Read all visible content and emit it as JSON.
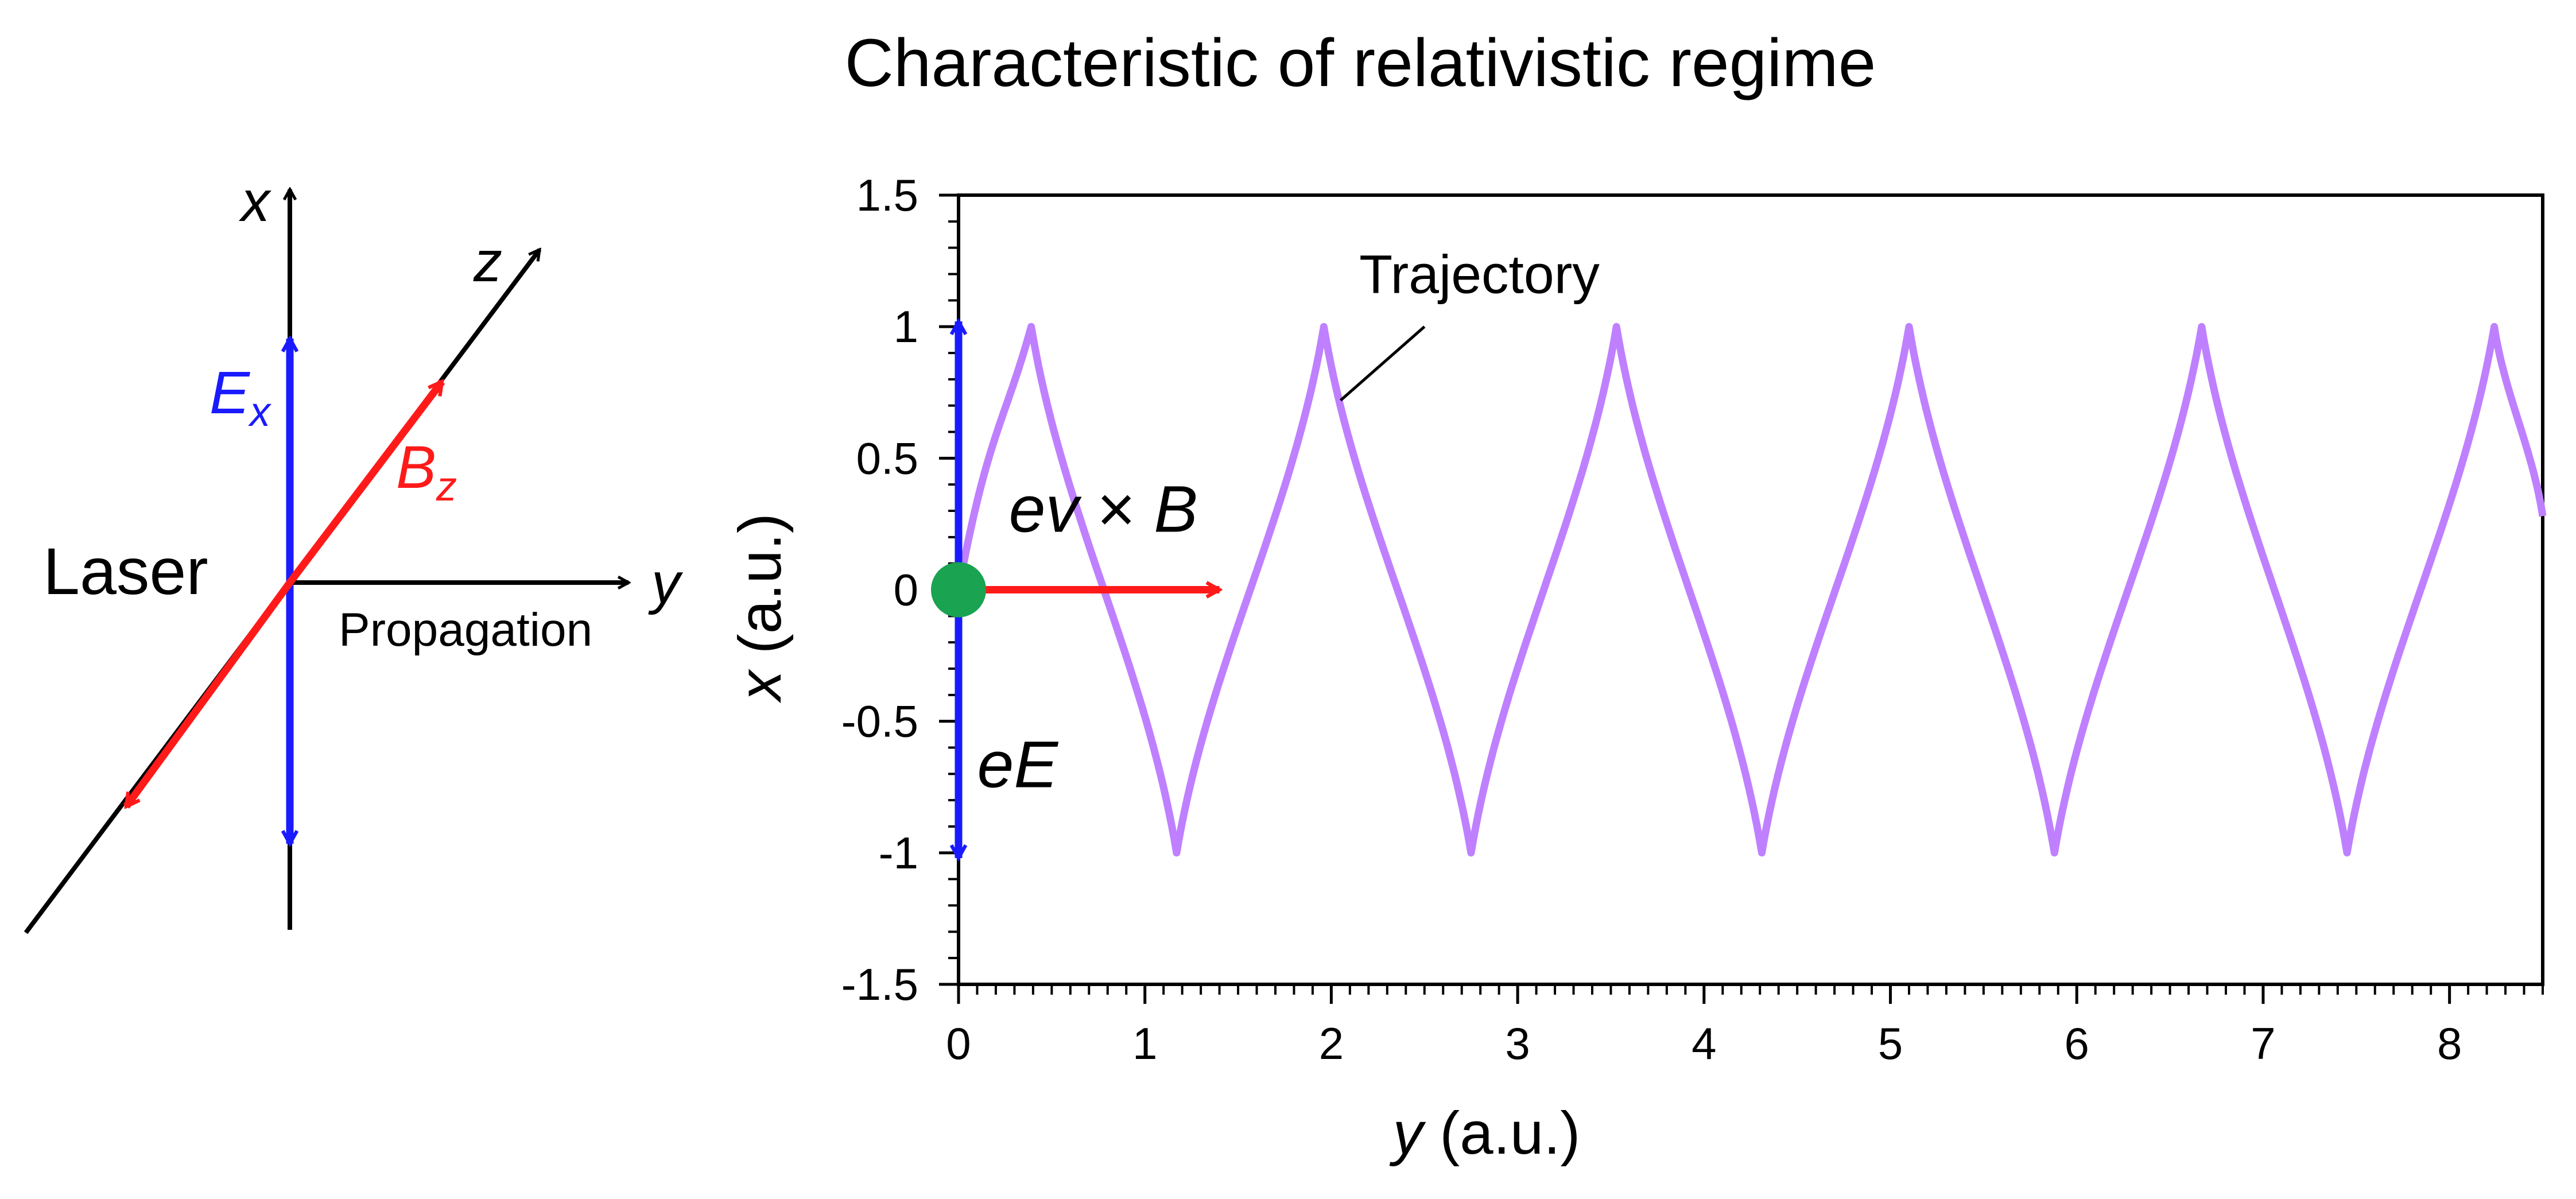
{
  "title": "Characteristic of relativistic regime",
  "colors": {
    "axis": "#000000",
    "efield": "#1a1aff",
    "bfield": "#ff1a1a",
    "trajectory": "#bf80ff",
    "particle": "#1aa350"
  },
  "schematic": {
    "x_axis_label": "x",
    "y_axis_label": "y",
    "z_axis_label": "z",
    "e_label_main": "E",
    "e_label_sub": "x",
    "b_label_main": "B",
    "b_label_sub": "z",
    "laser_label": "Laser",
    "propagation_label": "Propagation"
  },
  "chart_data": {
    "type": "line",
    "xlabel_var": "y",
    "xlabel_unit": " (a.u.)",
    "ylabel_var": "x",
    "ylabel_unit": " (a.u.)",
    "xlim": [
      0,
      8.5
    ],
    "ylim": [
      -1.5,
      1.5
    ],
    "x_ticks": [
      "0",
      "1",
      "2",
      "3",
      "4",
      "5",
      "6",
      "7",
      "8"
    ],
    "y_ticks": [
      "1.5",
      "1",
      "0.5",
      "0",
      "-0.5",
      "-1",
      "-1.5"
    ],
    "series": [
      {
        "label": "Trajectory",
        "x": [
          0,
          0.39,
          1.17,
          1.96,
          2.75,
          3.53,
          4.31,
          5.1,
          5.88,
          6.67,
          7.45,
          8.24,
          8.5
        ],
        "y": [
          0,
          1,
          -1,
          1,
          -1,
          1,
          -1,
          1,
          -1,
          1,
          -1,
          1,
          0.28
        ]
      }
    ],
    "annotations": {
      "trajectory_label": "Trajectory",
      "force_eE": "eE",
      "force_evB_left": "ev",
      "force_evB_times": "×",
      "force_evB_right": "B"
    }
  }
}
